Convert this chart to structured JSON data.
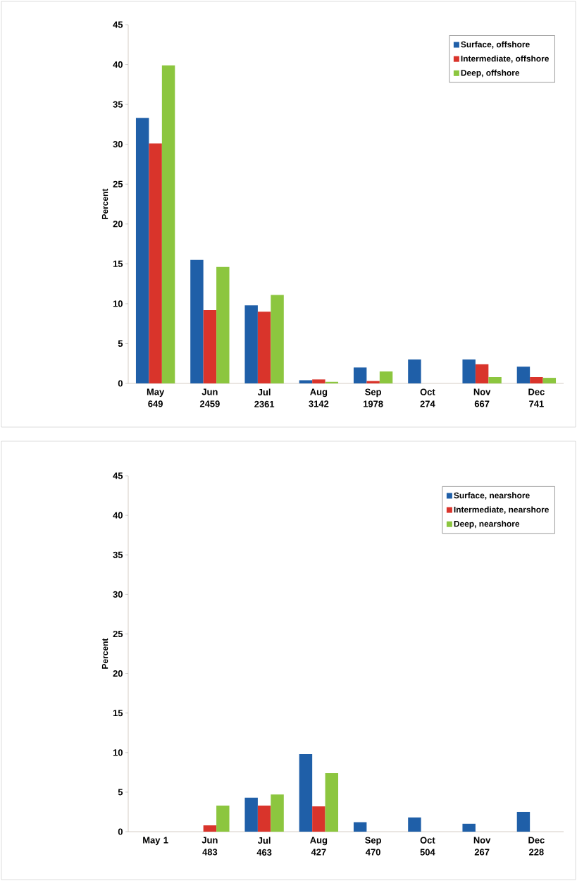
{
  "chart_data": [
    {
      "type": "bar",
      "ylabel": "Percent",
      "categories": [
        "May 649",
        "Jun 2459",
        "Jul 2361",
        "Aug 3142",
        "Sep 1978",
        "Oct 274",
        "Nov 667",
        "Dec 741"
      ],
      "ylim": [
        0,
        45
      ],
      "yticks": [
        0,
        5,
        10,
        15,
        20,
        25,
        30,
        35,
        40,
        45
      ],
      "legend": "top right",
      "series": [
        {
          "name": "Surface, offshore",
          "color": "#1f5fa8",
          "values": [
            33.3,
            15.5,
            9.8,
            0.4,
            2.0,
            3.0,
            3.0,
            2.1
          ]
        },
        {
          "name": "Intermediate, offshore",
          "color": "#d9342b",
          "values": [
            30.1,
            9.2,
            9.0,
            0.5,
            0.3,
            0,
            2.4,
            0.8
          ]
        },
        {
          "name": "Deep, offshore",
          "color": "#8cc63f",
          "values": [
            39.9,
            14.6,
            11.1,
            0.2,
            1.5,
            0,
            0.8,
            0.7
          ]
        }
      ]
    },
    {
      "type": "bar",
      "ylabel": "Percent",
      "categories": [
        "May 1",
        "Jun 483",
        "Jul 463",
        "Aug 427",
        "Sep 470",
        "Oct 504",
        "Nov 267",
        "Dec 228"
      ],
      "ylim": [
        0,
        45
      ],
      "yticks": [
        0,
        5,
        10,
        15,
        20,
        25,
        30,
        35,
        40,
        45
      ],
      "legend": "top right",
      "series": [
        {
          "name": "Surface, nearshore",
          "color": "#1f5fa8",
          "values": [
            0,
            0,
            4.3,
            9.8,
            1.2,
            1.8,
            1.0,
            2.5
          ]
        },
        {
          "name": "Intermediate, nearshore",
          "color": "#d9342b",
          "values": [
            0,
            0.8,
            3.3,
            3.2,
            0,
            0,
            0,
            0
          ]
        },
        {
          "name": "Deep, nearshore",
          "color": "#8cc63f",
          "values": [
            0,
            3.3,
            4.7,
            7.4,
            0,
            0,
            0,
            0
          ]
        }
      ]
    }
  ]
}
